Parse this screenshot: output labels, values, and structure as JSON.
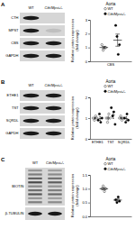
{
  "chart_data": [
    {
      "type": "scatter",
      "title": "Aorta",
      "y_label": "Relative protein expression (fold change)",
      "categories": [
        "CBS"
      ],
      "ylim": [
        0,
        3
      ],
      "yticks": [
        0,
        1,
        2,
        3
      ],
      "legend": "top-right",
      "series": [
        {
          "name": "WT",
          "color": "#000000",
          "marker": "open-circle",
          "values": [
            [
              1.2,
              0.8,
              1.0,
              1.0
            ]
          ],
          "mean": [
            1.0
          ],
          "error": [
            0.08
          ]
        },
        {
          "name": "Cth/Mpst-/-",
          "color": "#000000",
          "marker": "circle",
          "values": [
            [
              2.6,
              1.8,
              0.5,
              1.2
            ]
          ],
          "mean": [
            1.53
          ],
          "error": [
            0.44
          ]
        }
      ]
    },
    {
      "type": "scatter",
      "title": "Aorta",
      "y_label": "Relative protein expression (fold change)",
      "categories": [
        "ETHE1",
        "TST",
        "SQRDL"
      ],
      "ylim": [
        0,
        2
      ],
      "yticks": [
        0,
        1,
        2
      ],
      "legend": "top-right",
      "series": [
        {
          "name": "WT",
          "color": "#000000",
          "marker": "open-circle",
          "values": [
            [
              1.0,
              0.9,
              1.1,
              1.0
            ],
            [
              1.0,
              0.8,
              1.2,
              1.0
            ],
            [
              1.0,
              1.1,
              0.9,
              1.0
            ]
          ],
          "mean": [
            1.0,
            1.0,
            1.0
          ],
          "error": [
            0.04,
            0.08,
            0.04
          ]
        },
        {
          "name": "Cth/Mpst-/-",
          "color": "#000000",
          "marker": "circle",
          "values": [
            [
              0.9,
              1.2,
              0.8,
              1.0
            ],
            [
              1.5,
              1.1,
              1.3,
              0.7
            ],
            [
              1.0,
              0.8,
              1.2,
              0.9
            ]
          ],
          "mean": [
            0.975,
            1.15,
            0.975
          ],
          "error": [
            0.09,
            0.17,
            0.09
          ]
        }
      ]
    },
    {
      "type": "scatter",
      "title": "Aorta",
      "y_label": "Relative protein expression (fold change)",
      "categories": [
        null
      ],
      "ylim": [
        0,
        1.5
      ],
      "yticks": [
        {
          "value": 0,
          "label": "0.0"
        },
        {
          "value": 0.5,
          "label": "0.5"
        },
        {
          "value": 1,
          "label": "1.0"
        },
        {
          "value": 1.5,
          "label": "1.5"
        }
      ],
      "legend": "top-right",
      "series": [
        {
          "name": "WT",
          "color": "#000000",
          "marker": "open-circle",
          "values": [
            [
              1.0,
              1.1,
              0.9,
              1.0
            ]
          ],
          "mean": [
            1.0
          ],
          "error": [
            0.04
          ]
        },
        {
          "name": "Cth/Mpst-/-",
          "color": "#000000",
          "marker": "circle",
          "values": [
            [
              0.6,
              0.5,
              0.7,
              0.55
            ]
          ],
          "mean": [
            0.59
          ],
          "error": [
            0.04
          ]
        }
      ]
    }
  ],
  "blots": [
    {
      "panel": "A",
      "lanes": [
        "WT",
        "Cth/Mpst-/-"
      ],
      "rows": [
        "CTH",
        "MPST",
        "CBS",
        "GAPDH"
      ]
    },
    {
      "panel": "B",
      "lanes": [
        "WT",
        "Cth/Mpst-/-"
      ],
      "rows": [
        "ETHE1",
        "TST",
        "SQRDL",
        "GAPDH"
      ]
    },
    {
      "panel": "C",
      "lanes": [
        "WT",
        "Cth/Mpst-/-"
      ],
      "rows": [
        "BIOTIN",
        "β-TUBULIN"
      ]
    }
  ]
}
